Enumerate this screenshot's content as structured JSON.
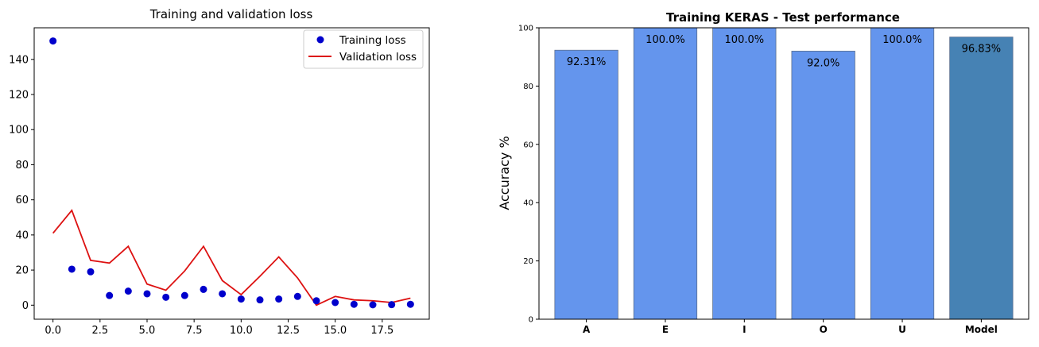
{
  "chart_data": [
    {
      "type": "scatter+line",
      "title": "Training and validation loss",
      "xlim": [
        -1,
        20
      ],
      "ylim": [
        -8,
        158
      ],
      "xticks": [
        "0.0",
        "2.5",
        "5.0",
        "7.5",
        "10.0",
        "12.5",
        "15.0",
        "17.5"
      ],
      "yticks": [
        "0",
        "20",
        "40",
        "60",
        "80",
        "100",
        "120",
        "140"
      ],
      "legend": "top-right",
      "series": [
        {
          "name": "Training loss",
          "style": "points",
          "color": "#0000cc",
          "x": [
            0,
            1,
            2,
            3,
            4,
            5,
            6,
            7,
            8,
            9,
            10,
            11,
            12,
            13,
            14,
            15,
            16,
            17,
            18,
            19
          ],
          "y": [
            150.5,
            20.5,
            19,
            5.5,
            8,
            6.5,
            4.5,
            5.5,
            9,
            6.5,
            3.5,
            3,
            3.5,
            5,
            2.5,
            1.5,
            0.5,
            0.2,
            0.3,
            0.5
          ]
        },
        {
          "name": "Validation loss",
          "style": "line",
          "color": "#dd1111",
          "x": [
            0,
            1,
            2,
            3,
            4,
            5,
            6,
            7,
            8,
            9,
            10,
            11,
            12,
            13,
            14,
            15,
            16,
            17,
            18,
            19
          ],
          "y": [
            41,
            54,
            25.5,
            24,
            33.5,
            12,
            8.5,
            19.5,
            33.5,
            14,
            6,
            16.5,
            27.5,
            15.5,
            0,
            5,
            3,
            2.5,
            1.5,
            4
          ]
        }
      ]
    },
    {
      "type": "bar",
      "title": "Training KERAS - Test performance",
      "ylabel": "Accuracy %",
      "ylim": [
        0,
        100
      ],
      "yticks": [
        "0",
        "20",
        "40",
        "60",
        "80",
        "100"
      ],
      "categories": [
        "A",
        "E",
        "I",
        "O",
        "U",
        "Model"
      ],
      "values": [
        92.31,
        100.0,
        100.0,
        92.0,
        100.0,
        96.83
      ],
      "value_labels": [
        "92.31%",
        "100.0%",
        "100.0%",
        "92.0%",
        "100.0%",
        "96.83%"
      ],
      "colors": [
        "#6495ED",
        "#6495ED",
        "#6495ED",
        "#6495ED",
        "#6495ED",
        "#4682B4"
      ]
    }
  ]
}
